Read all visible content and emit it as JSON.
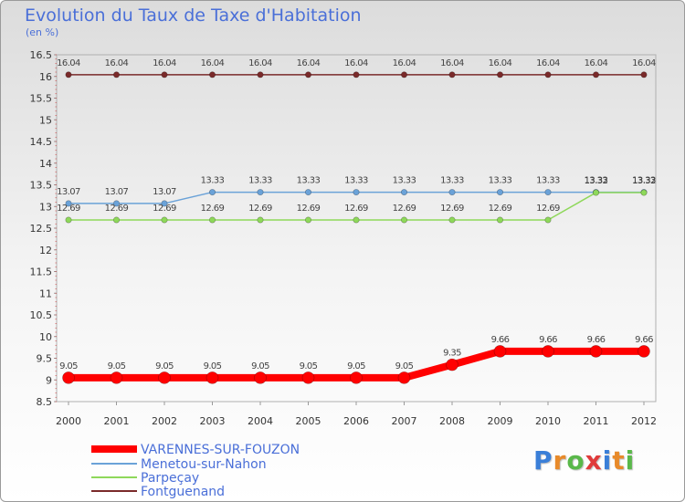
{
  "header": {
    "title": "Evolution du Taux de Taxe d'Habitation",
    "subtitle": "(en %)"
  },
  "logo": {
    "letters": [
      "P",
      "r",
      "o",
      "x",
      "i",
      "t",
      "i"
    ],
    "colors": [
      "#3a7fd8",
      "#e88a2a",
      "#5ab84a",
      "#e03a3a",
      "#3a7fd8",
      "#e88a2a",
      "#5ab84a"
    ]
  },
  "chart_data": {
    "type": "line",
    "x": [
      "2000",
      "2001",
      "2002",
      "2003",
      "2004",
      "2005",
      "2006",
      "2007",
      "2008",
      "2009",
      "2010",
      "2011",
      "2012"
    ],
    "ylim": [
      8.5,
      16.5
    ],
    "yticks": [
      "8.5",
      "9",
      "9.5",
      "10",
      "10.5",
      "11",
      "11.5",
      "12",
      "12.5",
      "13",
      "13.5",
      "14",
      "14.5",
      "15",
      "15.5",
      "16",
      "16.5"
    ],
    "grid": false,
    "legend_position": "bottom-left",
    "series": [
      {
        "name": "Fontguenand",
        "color": "#7a2a2a",
        "values": [
          16.04,
          16.04,
          16.04,
          16.04,
          16.04,
          16.04,
          16.04,
          16.04,
          16.04,
          16.04,
          16.04,
          16.04,
          16.04
        ],
        "labels": [
          "16.04",
          "16.04",
          "16.04",
          "16.04",
          "16.04",
          "16.04",
          "16.04",
          "16.04",
          "16.04",
          "16.04",
          "16.04",
          "16.04",
          "16.04"
        ]
      },
      {
        "name": "Menetou-sur-Nahon",
        "color": "#6aa2d8",
        "values": [
          13.07,
          13.07,
          13.07,
          13.33,
          13.33,
          13.33,
          13.33,
          13.33,
          13.33,
          13.33,
          13.33,
          13.33,
          13.33
        ],
        "labels": [
          "13.07",
          "13.07",
          "13.07",
          "13.33",
          "13.33",
          "13.33",
          "13.33",
          "13.33",
          "13.33",
          "13.33",
          "13.33",
          "13.33",
          "13.33"
        ]
      },
      {
        "name": "Parpeçay",
        "color": "#8ed85a",
        "values": [
          12.69,
          12.69,
          12.69,
          12.69,
          12.69,
          12.69,
          12.69,
          12.69,
          12.69,
          12.69,
          12.69,
          13.32,
          13.32
        ],
        "labels": [
          "12.69",
          "12.69",
          "12.69",
          "12.69",
          "12.69",
          "12.69",
          "12.69",
          "12.69",
          "12.69",
          "12.69",
          "12.69",
          "13.32",
          "13.32"
        ]
      },
      {
        "name": "VARENNES-SUR-FOUZON",
        "color": "#ff0000",
        "values": [
          9.05,
          9.05,
          9.05,
          9.05,
          9.05,
          9.05,
          9.05,
          9.05,
          9.35,
          9.66,
          9.66,
          9.66,
          9.66
        ],
        "labels": [
          "9.05",
          "9.05",
          "9.05",
          "9.05",
          "9.05",
          "9.05",
          "9.05",
          "9.05",
          "9.35",
          "9.66",
          "9.66",
          "9.66",
          "9.66"
        ]
      }
    ],
    "legend": [
      "VARENNES-SUR-FOUZON",
      "Menetou-sur-Nahon",
      "Parpeçay",
      "Fontguenand"
    ]
  }
}
